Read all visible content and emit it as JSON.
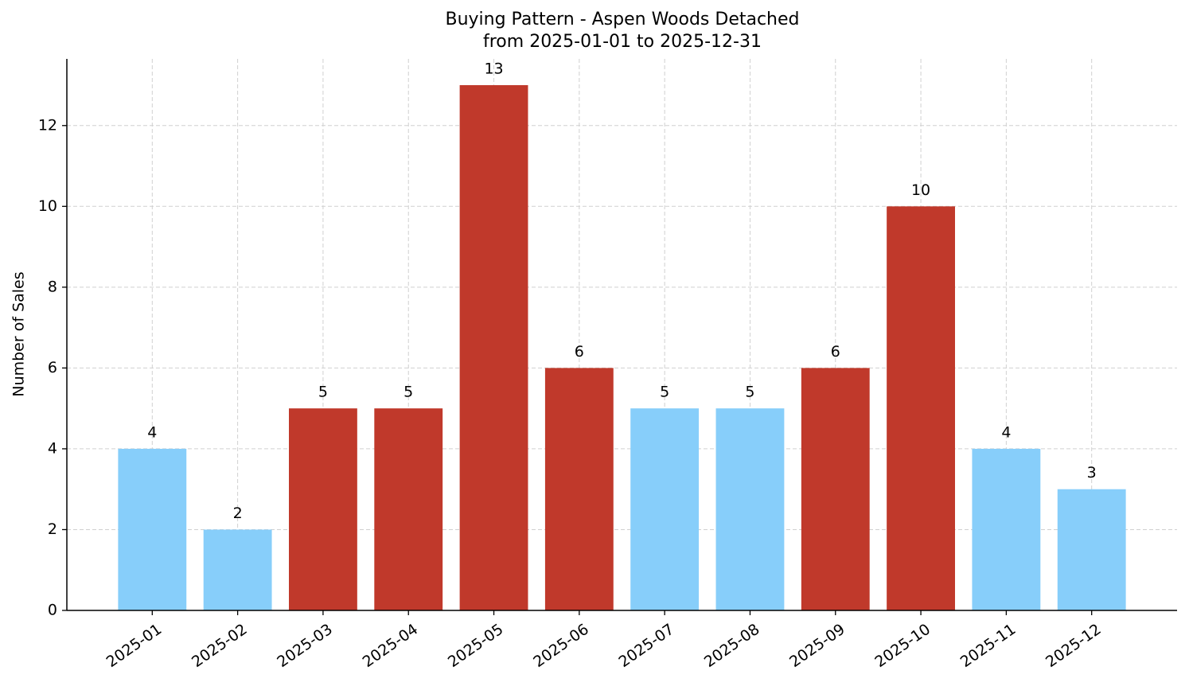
{
  "chart_data": {
    "type": "bar",
    "title": "Buying Pattern - Aspen Woods Detached",
    "subtitle": "from 2025-01-01 to 2025-12-31",
    "y_label": "Number of Sales",
    "categories": [
      "2025-01",
      "2025-02",
      "2025-03",
      "2025-04",
      "2025-05",
      "2025-06",
      "2025-07",
      "2025-08",
      "2025-09",
      "2025-10",
      "2025-11",
      "2025-12"
    ],
    "values": [
      4,
      2,
      5,
      5,
      13,
      6,
      5,
      5,
      6,
      10,
      4,
      3
    ],
    "colors": [
      "#87cefa",
      "#87cefa",
      "#c0392b",
      "#c0392b",
      "#c0392b",
      "#c0392b",
      "#87cefa",
      "#87cefa",
      "#c0392b",
      "#c0392b",
      "#87cefa",
      "#87cefa"
    ],
    "ylim": [
      0,
      13.65
    ],
    "yticks": [
      0,
      2,
      4,
      6,
      8,
      10,
      12
    ],
    "grid": true
  }
}
